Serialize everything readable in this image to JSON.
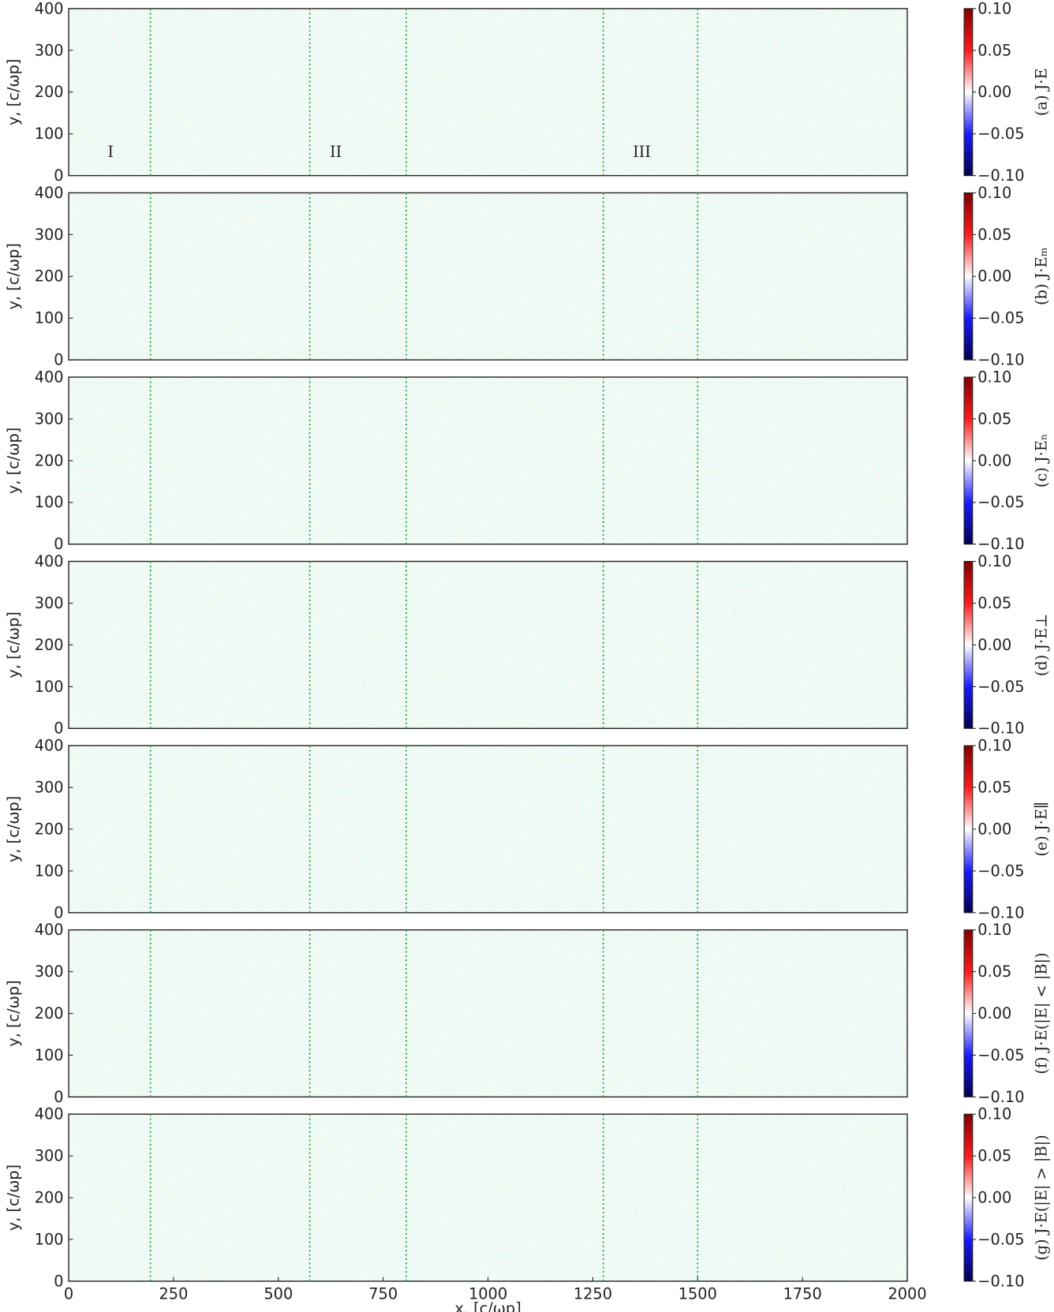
{
  "chart_data": [
    {
      "type": "heatmap",
      "ylabel": "y, [c/ωp]",
      "xlim": [
        0,
        2000
      ],
      "ylim": [
        0,
        400
      ],
      "yticks": [
        0,
        100,
        200,
        300,
        400
      ],
      "vlines": [
        195,
        575,
        805,
        1275,
        1500
      ],
      "colorbar_label": "(a) J·E",
      "clim": [
        -0.1,
        0.1
      ],
      "cticks": [
        {
          "value": -0.1,
          "label": "−0.10"
        },
        {
          "value": -0.05,
          "label": "−0.05"
        },
        {
          "value": 0,
          "label": "0.00"
        },
        0.05,
        {
          "value": 0.1,
          "label": "0.10"
        }
      ],
      "annotations": [
        {
          "text": "I",
          "x": 100,
          "y": 45
        },
        {
          "text": "II",
          "x": 637,
          "y": 45
        },
        {
          "text": "III",
          "x": 1367,
          "y": 45
        }
      ]
    },
    {
      "type": "heatmap",
      "ylabel": "y, [c/ωp]",
      "xlim": [
        0,
        2000
      ],
      "ylim": [
        0,
        400
      ],
      "yticks": [
        0,
        100,
        200,
        300,
        400
      ],
      "vlines": [
        195,
        575,
        805,
        1275,
        1500
      ],
      "colorbar_label": "(b) J·Eₘ",
      "clim": [
        -0.1,
        0.1
      ],
      "cticks": [
        {
          "value": -0.1,
          "label": "−0.10"
        },
        {
          "value": -0.05,
          "label": "−0.05"
        },
        {
          "value": 0,
          "label": "0.00"
        },
        0.05,
        {
          "value": 0.1,
          "label": "0.10"
        }
      ]
    },
    {
      "type": "heatmap",
      "ylabel": "y, [c/ωp]",
      "xlim": [
        0,
        2000
      ],
      "ylim": [
        0,
        400
      ],
      "yticks": [
        0,
        100,
        200,
        300,
        400
      ],
      "vlines": [
        195,
        575,
        805,
        1275,
        1500
      ],
      "colorbar_label": "(c) J·Eₙ",
      "clim": [
        -0.1,
        0.1
      ],
      "cticks": [
        {
          "value": -0.1,
          "label": "−0.10"
        },
        {
          "value": -0.05,
          "label": "−0.05"
        },
        {
          "value": 0,
          "label": "0.00"
        },
        0.05,
        {
          "value": 0.1,
          "label": "0.10"
        }
      ]
    },
    {
      "type": "heatmap",
      "ylabel": "y, [c/ωp]",
      "xlim": [
        0,
        2000
      ],
      "ylim": [
        0,
        400
      ],
      "yticks": [
        0,
        100,
        200,
        300,
        400
      ],
      "vlines": [
        195,
        575,
        805,
        1275,
        1500
      ],
      "colorbar_label": "(d) J·E⊥",
      "clim": [
        -0.1,
        0.1
      ],
      "cticks": [
        {
          "value": -0.1,
          "label": "−0.10"
        },
        {
          "value": -0.05,
          "label": "−0.05"
        },
        {
          "value": 0,
          "label": "0.00"
        },
        0.05,
        {
          "value": 0.1,
          "label": "0.10"
        }
      ]
    },
    {
      "type": "heatmap",
      "ylabel": "y, [c/ωp]",
      "xlim": [
        0,
        2000
      ],
      "ylim": [
        0,
        400
      ],
      "yticks": [
        0,
        100,
        200,
        300,
        400
      ],
      "vlines": [
        195,
        575,
        805,
        1275,
        1500
      ],
      "colorbar_label": "(e) J·E∥",
      "clim": [
        -0.1,
        0.1
      ],
      "cticks": [
        {
          "value": -0.1,
          "label": "−0.10"
        },
        {
          "value": -0.05,
          "label": "−0.05"
        },
        {
          "value": 0,
          "label": "0.00"
        },
        0.05,
        {
          "value": 0.1,
          "label": "0.10"
        }
      ]
    },
    {
      "type": "heatmap",
      "ylabel": "y, [c/ωp]",
      "xlim": [
        0,
        2000
      ],
      "ylim": [
        0,
        400
      ],
      "yticks": [
        0,
        100,
        200,
        300,
        400
      ],
      "vlines": [
        195,
        575,
        805,
        1275,
        1500
      ],
      "colorbar_label": "(f) J·E(|E| < |B|)",
      "clim": [
        -0.1,
        0.1
      ],
      "cticks": [
        {
          "value": -0.1,
          "label": "−0.10"
        },
        {
          "value": -0.05,
          "label": "−0.05"
        },
        {
          "value": 0,
          "label": "0.00"
        },
        0.05,
        {
          "value": 0.1,
          "label": "0.10"
        }
      ]
    },
    {
      "type": "heatmap",
      "ylabel": "y, [c/ωp]",
      "xlabel": "x, [c/ωp]",
      "xlim": [
        0,
        2000
      ],
      "ylim": [
        0,
        400
      ],
      "xticks": [
        0,
        250,
        500,
        750,
        1000,
        1250,
        1500,
        1750,
        2000
      ],
      "yticks": [
        0,
        100,
        200,
        300,
        400
      ],
      "vlines": [
        195,
        575,
        805,
        1275,
        1500
      ],
      "colorbar_label": "(g) J·E(|E| > |B|)",
      "clim": [
        -0.1,
        0.1
      ],
      "cticks": [
        {
          "value": -0.1,
          "label": "−0.10"
        },
        {
          "value": -0.05,
          "label": "−0.05"
        },
        {
          "value": 0,
          "label": "0.00"
        },
        0.05,
        {
          "value": 0.1,
          "label": "0.10"
        }
      ]
    }
  ]
}
